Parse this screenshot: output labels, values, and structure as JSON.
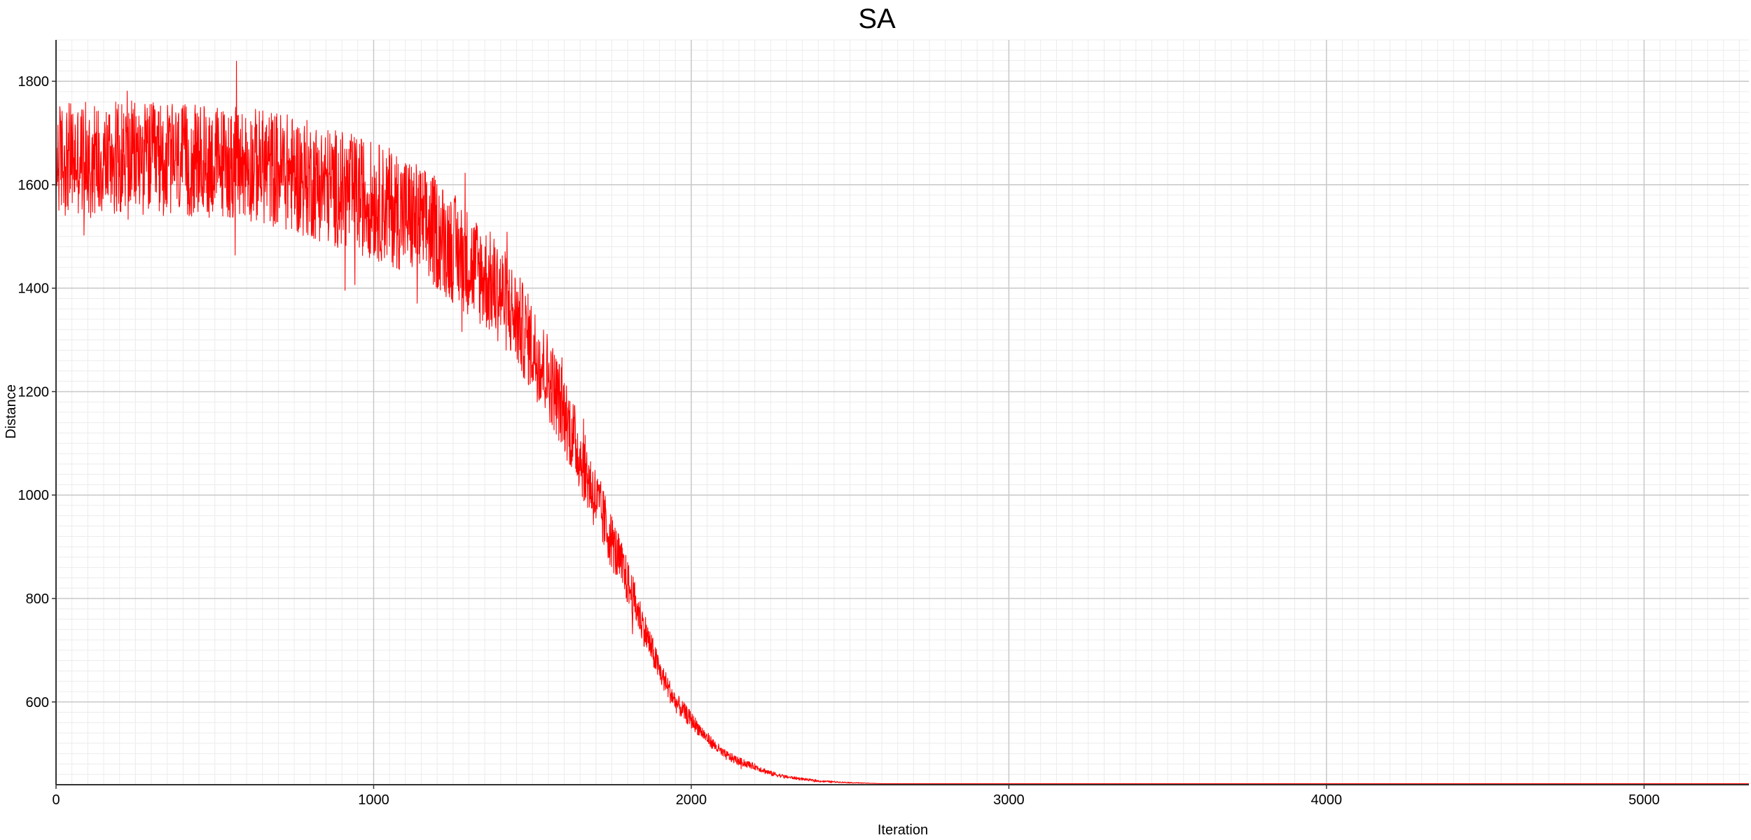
{
  "chart_data": {
    "type": "line",
    "title": "SA",
    "xlabel": "Iteration",
    "ylabel": "Distance",
    "xlim": [
      0,
      5330
    ],
    "ylim": [
      440,
      1880
    ],
    "x_ticks": [
      0,
      1000,
      2000,
      3000,
      4000,
      5000
    ],
    "y_ticks": [
      600,
      800,
      1000,
      1200,
      1400,
      1600,
      1800
    ],
    "grid": true,
    "minor_grid": true,
    "legend": "none",
    "series": [
      {
        "color": "#ff0000",
        "profile": {
          "x": [
            0,
            100,
            200,
            300,
            400,
            500,
            600,
            700,
            800,
            900,
            1000,
            1100,
            1200,
            1300,
            1400,
            1450,
            1500,
            1550,
            1600,
            1650,
            1700,
            1750,
            1800,
            1850,
            1900,
            1950,
            2000,
            2050,
            2100,
            2150,
            2200,
            2250,
            2300,
            2400,
            2500,
            2600,
            5330
          ],
          "center": [
            1650,
            1650,
            1655,
            1650,
            1645,
            1645,
            1640,
            1630,
            1610,
            1590,
            1570,
            1545,
            1505,
            1450,
            1390,
            1340,
            1285,
            1230,
            1160,
            1075,
            990,
            910,
            830,
            745,
            660,
            600,
            565,
            530,
            500,
            485,
            475,
            462,
            455,
            447,
            444,
            442,
            442
          ],
          "noise_amplitude": [
            110,
            110,
            110,
            110,
            110,
            110,
            110,
            115,
            115,
            115,
            115,
            115,
            110,
            105,
            100,
            95,
            90,
            85,
            80,
            70,
            65,
            55,
            45,
            35,
            25,
            20,
            16,
            12,
            10,
            8,
            6,
            5,
            3,
            2,
            1,
            0,
            0
          ]
        }
      }
    ]
  }
}
